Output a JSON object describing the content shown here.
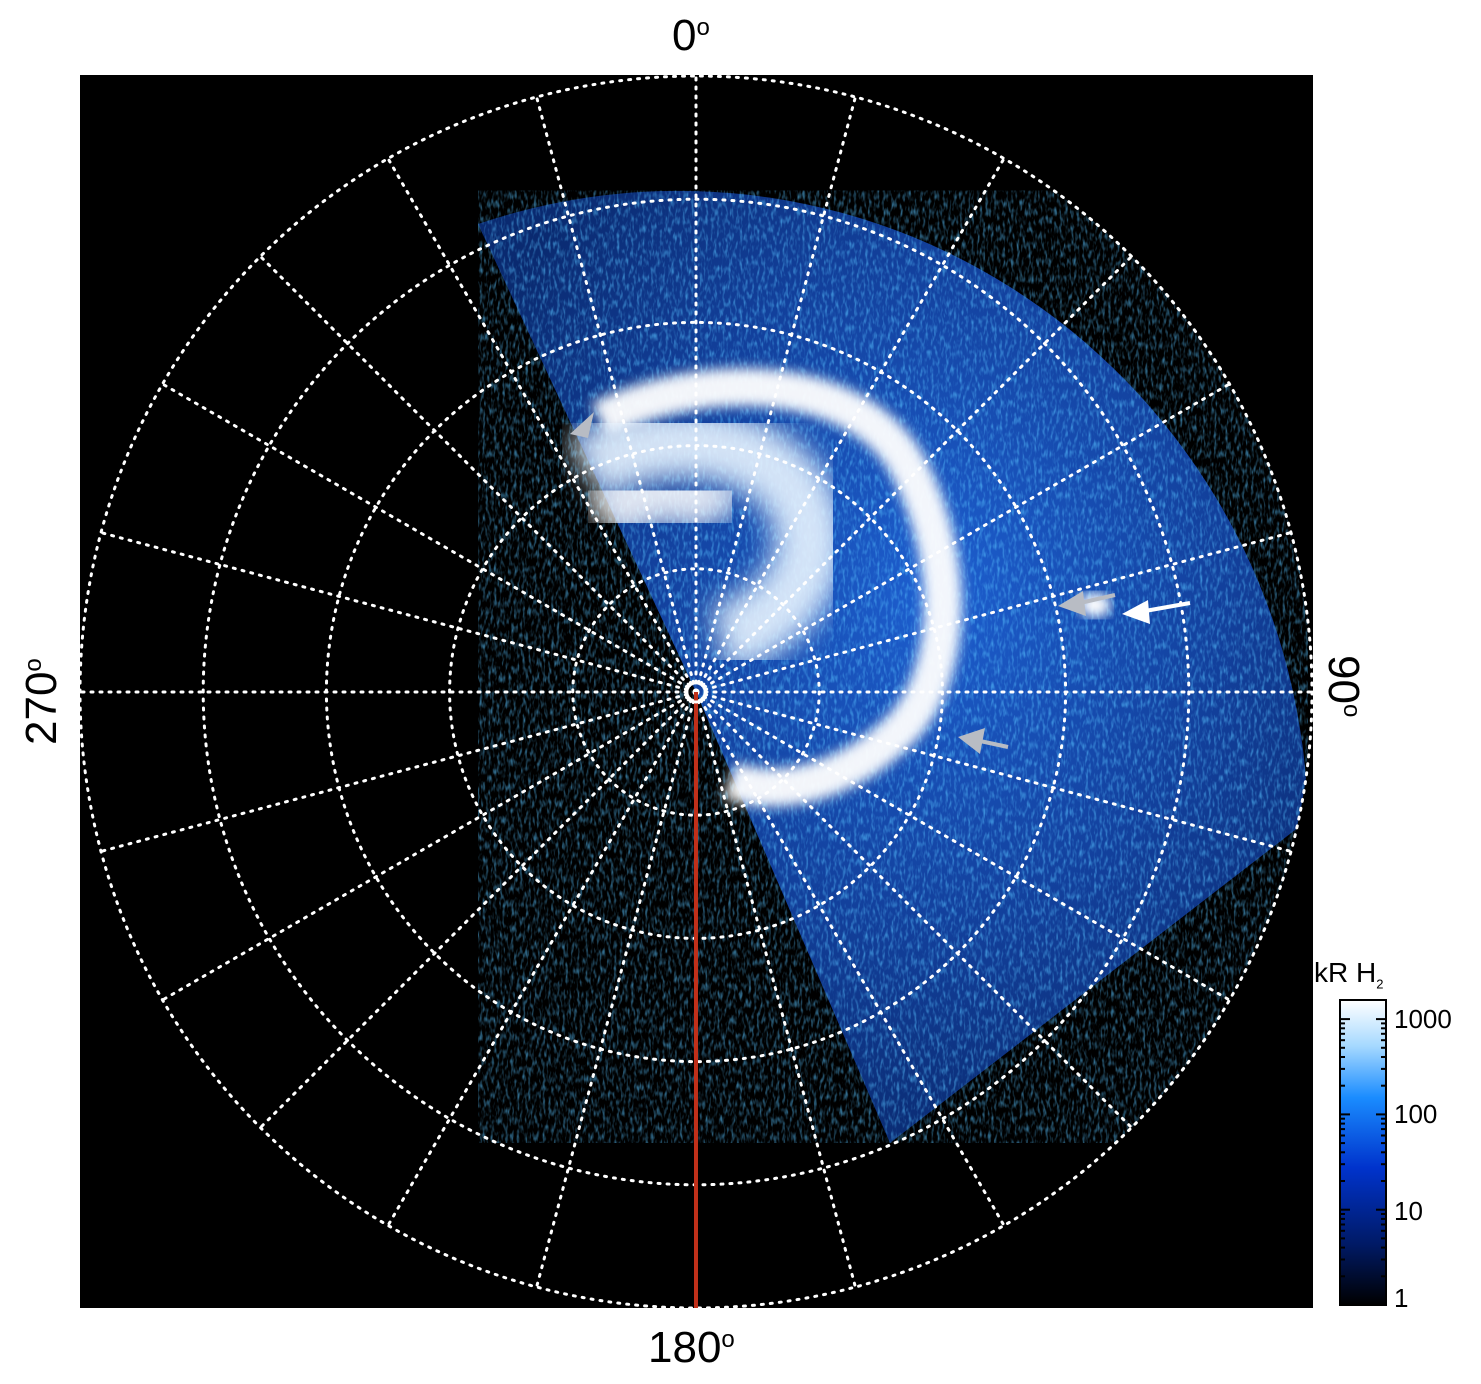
{
  "axis_labels": {
    "top": "0",
    "right": "90",
    "bottom": "180",
    "left": "270",
    "degree_symbol": "o"
  },
  "colorbar": {
    "title_main": "kR H",
    "title_sub": "2",
    "ticks": [
      "1000",
      "100",
      "10",
      "1"
    ],
    "scale": "log",
    "colors": [
      "#000000",
      "#001a66",
      "#0033cc",
      "#1a8cff",
      "#a6d9ff",
      "#ffffff"
    ]
  },
  "colors": {
    "background": "#000000",
    "grid": "#ffffff",
    "meridian_line": "#c0301a",
    "arrow_white": "#ffffff",
    "arrow_gray": "#b8bcc4"
  }
}
